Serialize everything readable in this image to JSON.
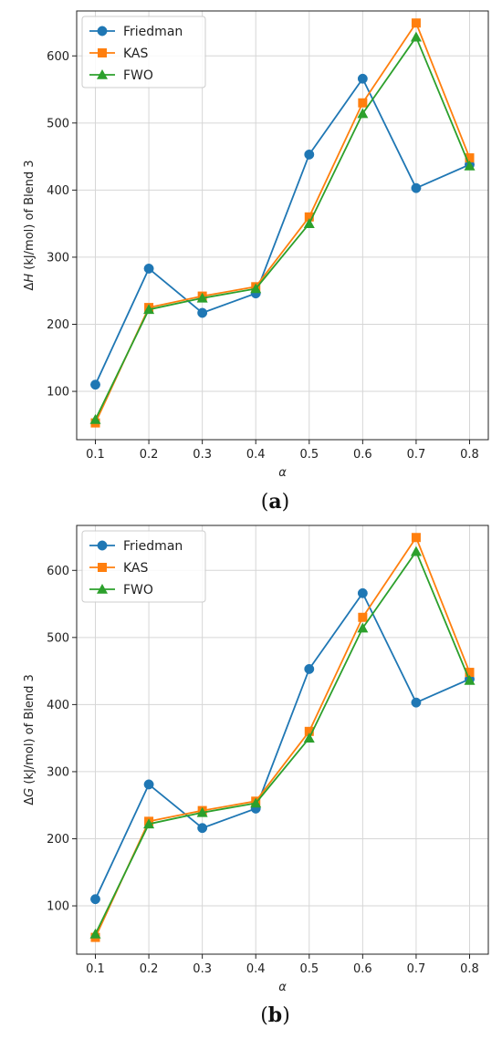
{
  "chart_data": [
    {
      "type": "line",
      "panel": "a",
      "caption": {
        "open": "(",
        "letter": "a",
        "close": ")"
      },
      "xlabel": "α",
      "ylabel": {
        "prefix": "Δ",
        "var": "H",
        "suffix": " (kJ/mol) of Blend 3"
      },
      "x": [
        0.1,
        0.2,
        0.3,
        0.4,
        0.5,
        0.6,
        0.7,
        0.8
      ],
      "xticks": [
        "0.1",
        "0.2",
        "0.3",
        "0.4",
        "0.5",
        "0.6",
        "0.7",
        "0.8"
      ],
      "yticks": [
        "100",
        "200",
        "300",
        "400",
        "500",
        "600"
      ],
      "ytick_values": [
        100,
        200,
        300,
        400,
        500,
        600
      ],
      "xlim": [
        0.065,
        0.835
      ],
      "ylim": [
        28,
        667
      ],
      "grid": true,
      "legend_position": "upper-left",
      "series": [
        {
          "name": "Friedman",
          "color": "#1f77b4",
          "marker": "circle",
          "values": [
            110,
            283,
            217,
            246,
            453,
            566,
            403,
            438
          ]
        },
        {
          "name": "KAS",
          "color": "#ff7f0e",
          "marker": "square",
          "values": [
            53,
            225,
            242,
            256,
            360,
            530,
            649,
            448
          ]
        },
        {
          "name": "FWO",
          "color": "#2ca02c",
          "marker": "triangle",
          "values": [
            58,
            222,
            239,
            253,
            350,
            514,
            628,
            436
          ]
        }
      ]
    },
    {
      "type": "line",
      "panel": "b",
      "caption": {
        "open": "(",
        "letter": "b",
        "close": ")"
      },
      "xlabel": "α",
      "ylabel": {
        "prefix": "Δ",
        "var": "G",
        "suffix": " (kJ/mol) of Blend 3"
      },
      "x": [
        0.1,
        0.2,
        0.3,
        0.4,
        0.5,
        0.6,
        0.7,
        0.8
      ],
      "xticks": [
        "0.1",
        "0.2",
        "0.3",
        "0.4",
        "0.5",
        "0.6",
        "0.7",
        "0.8"
      ],
      "yticks": [
        "100",
        "200",
        "300",
        "400",
        "500",
        "600"
      ],
      "ytick_values": [
        100,
        200,
        300,
        400,
        500,
        600
      ],
      "xlim": [
        0.065,
        0.835
      ],
      "ylim": [
        28,
        667
      ],
      "grid": true,
      "legend_position": "upper-left",
      "series": [
        {
          "name": "Friedman",
          "color": "#1f77b4",
          "marker": "circle",
          "values": [
            110,
            281,
            216,
            245,
            453,
            566,
            403,
            438
          ]
        },
        {
          "name": "KAS",
          "color": "#ff7f0e",
          "marker": "square",
          "values": [
            53,
            226,
            242,
            256,
            360,
            530,
            649,
            448
          ]
        },
        {
          "name": "FWO",
          "color": "#2ca02c",
          "marker": "triangle",
          "values": [
            58,
            222,
            239,
            253,
            350,
            514,
            628,
            436
          ]
        }
      ]
    }
  ]
}
